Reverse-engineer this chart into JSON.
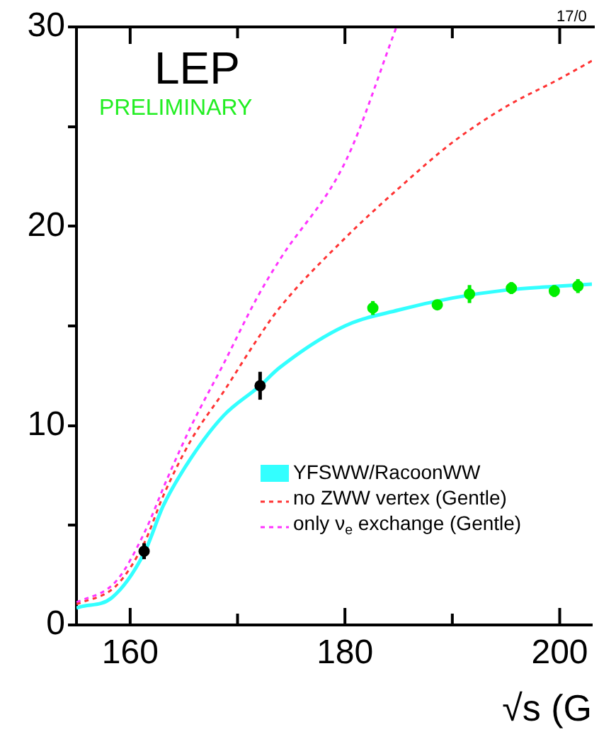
{
  "chart_data": {
    "type": "line",
    "xlabel": "√s (G",
    "xlim": [
      155,
      203
    ],
    "xticks": [
      160,
      {
        "value": 170,
        "label": null
      },
      180,
      {
        "value": 190,
        "label": null
      },
      200
    ],
    "ylim": [
      0,
      30
    ],
    "yticks": [
      0,
      {
        "value": 5,
        "label": null
      },
      10,
      {
        "value": 15,
        "label": null
      },
      20,
      {
        "value": 25,
        "label": null
      },
      30
    ],
    "grid": false,
    "legend": "right",
    "annotations": [
      "LEP",
      "PRELIMINARY",
      "17/0"
    ],
    "series": [
      {
        "name": "YFSWW/RacoonWW",
        "color": "#33ffff",
        "marker": "none",
        "line_style": "solid",
        "x": [
          155,
          155.3,
          158.3,
          161.3,
          163.1,
          165.7,
          168.7,
          172.1,
          173.9,
          180,
          185,
          190,
          195,
          200,
          203
        ],
        "values": [
          0.85,
          0.9,
          1.37,
          3.6,
          6.0,
          8.4,
          10.5,
          12.0,
          12.9,
          15.0,
          15.8,
          16.4,
          16.8,
          17.0,
          17.1
        ]
      },
      {
        "name": "no ZWW vertex (Gentle)",
        "color": "#ff3333",
        "marker": "none",
        "line_style": "dashed",
        "x": [
          155,
          155.3,
          158.7,
          161.3,
          163.1,
          165.7,
          168.7,
          171.8,
          173.9,
          180,
          185,
          190,
          195,
          200,
          203
        ],
        "values": [
          1.05,
          1.1,
          1.97,
          4.1,
          6.5,
          9.3,
          11.7,
          14.3,
          15.9,
          19.4,
          21.9,
          24.2,
          26.0,
          27.4,
          28.3
        ]
      },
      {
        "name": "only ν$_{e}$ exchange (Gentle)",
        "color": "#ff33ff",
        "marker": "none",
        "line_style": "dashed",
        "x": [
          155,
          155.3,
          158.7,
          161.3,
          163.5,
          165.7,
          168.7,
          171.8,
          173.9,
          180.1,
          184.8
        ],
        "values": [
          1.15,
          1.2,
          2.2,
          4.6,
          7.4,
          10.0,
          13.1,
          16.4,
          18.3,
          23.3,
          30
        ]
      },
      {
        "type": "scatter",
        "color": "#000000",
        "marker": "circle",
        "x": [
          161.3,
          172.1
        ],
        "values": [
          3.7,
          12.0
        ],
        "errors": [
          0.4,
          0.7
        ]
      },
      {
        "type": "scatter",
        "color": "#00ee00",
        "marker": "circle",
        "x": [
          182.6,
          188.6,
          191.6,
          195.5,
          199.5,
          201.7
        ],
        "values": [
          15.9,
          16.06,
          16.6,
          16.9,
          16.75,
          17.0
        ],
        "errors": [
          0.35,
          0.2,
          0.45,
          0.3,
          0.3,
          0.35
        ]
      }
    ]
  }
}
